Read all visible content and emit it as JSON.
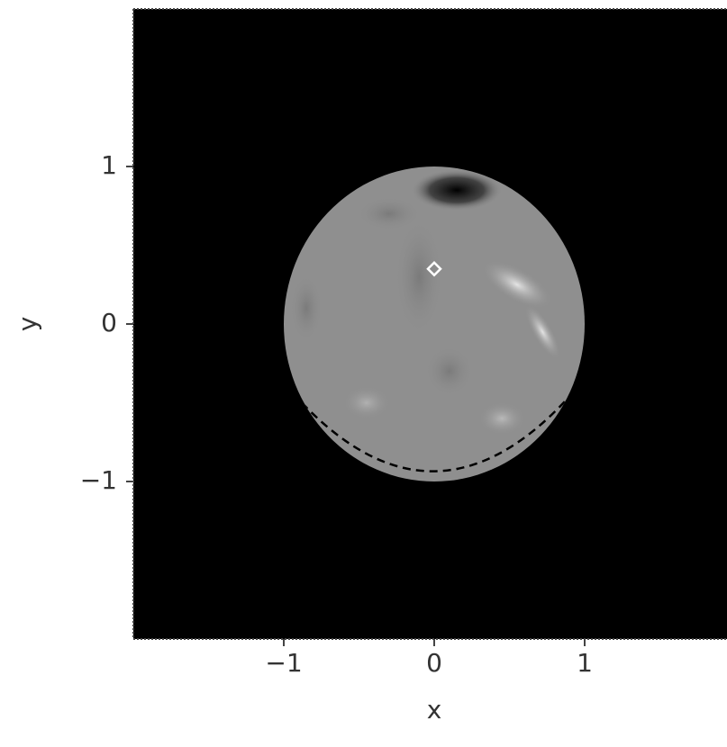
{
  "chart_data": {
    "type": "image",
    "xlabel": "x",
    "ylabel": "y",
    "xlim": [
      -2,
      2
    ],
    "ylim": [
      -2,
      2
    ],
    "xticks": [
      {
        "value": -1,
        "label": "−1"
      },
      0,
      1
    ],
    "yticks": [
      {
        "value": -1,
        "label": "−1"
      },
      0,
      1
    ],
    "disk": {
      "x": 0,
      "y": 0,
      "r": 1
    },
    "marker": {
      "x": 0,
      "y": 0.35,
      "color": "#ffffff"
    }
  }
}
